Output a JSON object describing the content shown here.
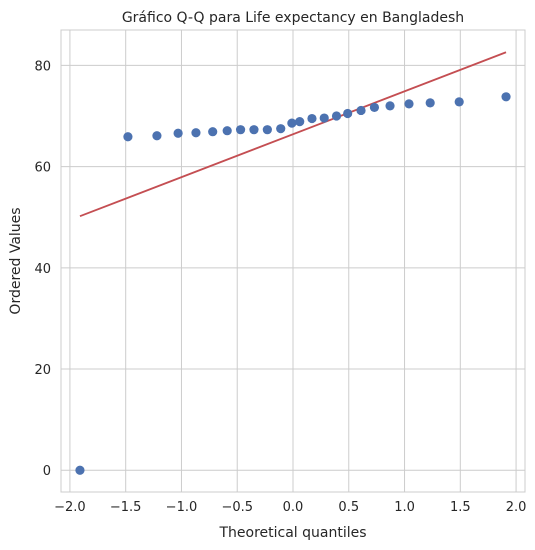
{
  "chart_data": {
    "type": "scatter",
    "title": "Gráfico Q-Q para Life expectancy en Bangladesh",
    "xlabel": "Theoretical quantiles",
    "ylabel": "Ordered Values",
    "xlim": [
      -2.08,
      2.08
    ],
    "ylim": [
      -4.3,
      87
    ],
    "xticks": [
      -2.0,
      -1.5,
      -1.0,
      -0.5,
      0.0,
      0.5,
      1.0,
      1.5,
      2.0
    ],
    "xtick_labels": [
      "−2.0",
      "−1.5",
      "−1.0",
      "−0.5",
      "0.0",
      "0.5",
      "1.0",
      "1.5",
      "2.0"
    ],
    "yticks": [
      0,
      20,
      40,
      60,
      80
    ],
    "ytick_labels": [
      "0",
      "20",
      "40",
      "60",
      "80"
    ],
    "grid": true,
    "points": [
      {
        "x": -1.91,
        "y": 0.0
      },
      {
        "x": -1.48,
        "y": 65.9
      },
      {
        "x": -1.22,
        "y": 66.1
      },
      {
        "x": -1.03,
        "y": 66.6
      },
      {
        "x": -0.87,
        "y": 66.7
      },
      {
        "x": -0.72,
        "y": 66.9
      },
      {
        "x": -0.59,
        "y": 67.1
      },
      {
        "x": -0.47,
        "y": 67.3
      },
      {
        "x": -0.35,
        "y": 67.3
      },
      {
        "x": -0.23,
        "y": 67.3
      },
      {
        "x": -0.11,
        "y": 67.5
      },
      {
        "x": -0.01,
        "y": 68.6
      },
      {
        "x": 0.06,
        "y": 68.9
      },
      {
        "x": 0.17,
        "y": 69.5
      },
      {
        "x": 0.28,
        "y": 69.6
      },
      {
        "x": 0.39,
        "y": 70.0
      },
      {
        "x": 0.49,
        "y": 70.5
      },
      {
        "x": 0.61,
        "y": 71.1
      },
      {
        "x": 0.73,
        "y": 71.7
      },
      {
        "x": 0.87,
        "y": 72.0
      },
      {
        "x": 1.04,
        "y": 72.4
      },
      {
        "x": 1.23,
        "y": 72.6
      },
      {
        "x": 1.49,
        "y": 72.8
      },
      {
        "x": 1.91,
        "y": 73.8
      }
    ],
    "fit_line": {
      "x": [
        -1.91,
        1.91
      ],
      "y": [
        50.2,
        82.6
      ]
    },
    "point_color": "#4c72b0",
    "line_color": "#c44e52"
  }
}
